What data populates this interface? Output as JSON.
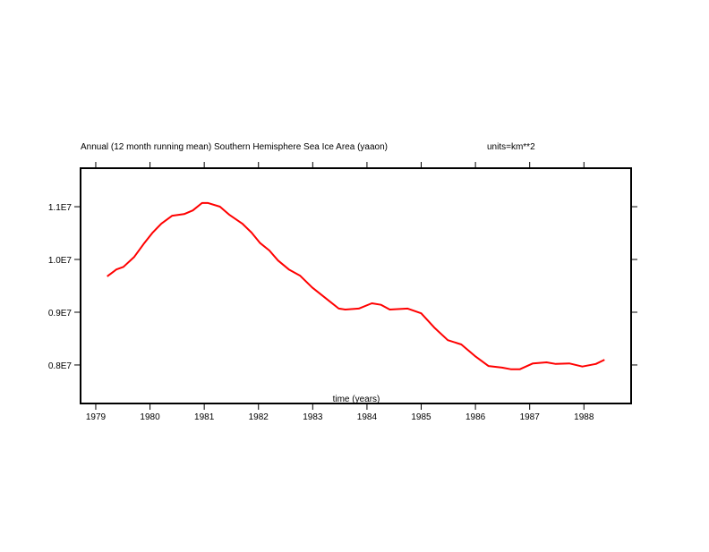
{
  "chart_data": {
    "type": "line",
    "title": "Annual (12 month running mean) Southern Hemisphere Sea Ice Area (yaaon)",
    "units_label": "units=km**2",
    "xlabel": "time (years)",
    "ylabel": "",
    "xlim": [
      1978.72,
      1988.87
    ],
    "ylim": [
      7270000,
      11730000
    ],
    "x_ticks": [
      1979,
      1980,
      1981,
      1982,
      1983,
      1984,
      1985,
      1986,
      1987,
      1988
    ],
    "x_tick_labels": [
      "1979",
      "1980",
      "1981",
      "1982",
      "1983",
      "1984",
      "1985",
      "1986",
      "1987",
      "1988"
    ],
    "y_ticks": [
      8000000,
      9000000,
      10000000,
      11000000
    ],
    "y_tick_labels": [
      "0.8E7",
      "0.9E7",
      "1.0E7",
      "1.1E7"
    ],
    "grid": false,
    "series": [
      {
        "name": "Southern Hemisphere Sea Ice Area",
        "color": "#ff0000",
        "x": [
          1979.21,
          1979.38,
          1979.51,
          1979.71,
          1979.88,
          1980.05,
          1980.21,
          1980.41,
          1980.63,
          1980.79,
          1980.96,
          1981.07,
          1981.29,
          1981.46,
          1981.7,
          1981.87,
          1982.03,
          1982.2,
          1982.36,
          1982.56,
          1982.77,
          1982.99,
          1983.27,
          1983.48,
          1983.6,
          1983.85,
          1984.09,
          1984.26,
          1984.42,
          1984.75,
          1985.0,
          1985.24,
          1985.49,
          1985.74,
          1985.99,
          1986.24,
          1986.49,
          1986.65,
          1986.82,
          1987.06,
          1987.31,
          1987.48,
          1987.73,
          1987.97,
          1988.22,
          1988.38
        ],
        "y": [
          9680000,
          9810000,
          9860000,
          10050000,
          10290000,
          10510000,
          10680000,
          10830000,
          10860000,
          10930000,
          11070000,
          11070000,
          11000000,
          10850000,
          10680000,
          10510000,
          10310000,
          10170000,
          9980000,
          9810000,
          9690000,
          9470000,
          9240000,
          9070000,
          9050000,
          9070000,
          9170000,
          9140000,
          9050000,
          9070000,
          8980000,
          8710000,
          8470000,
          8390000,
          8170000,
          7980000,
          7950000,
          7920000,
          7920000,
          8030000,
          8050000,
          8020000,
          8030000,
          7970000,
          8020000,
          8100000
        ]
      }
    ]
  }
}
